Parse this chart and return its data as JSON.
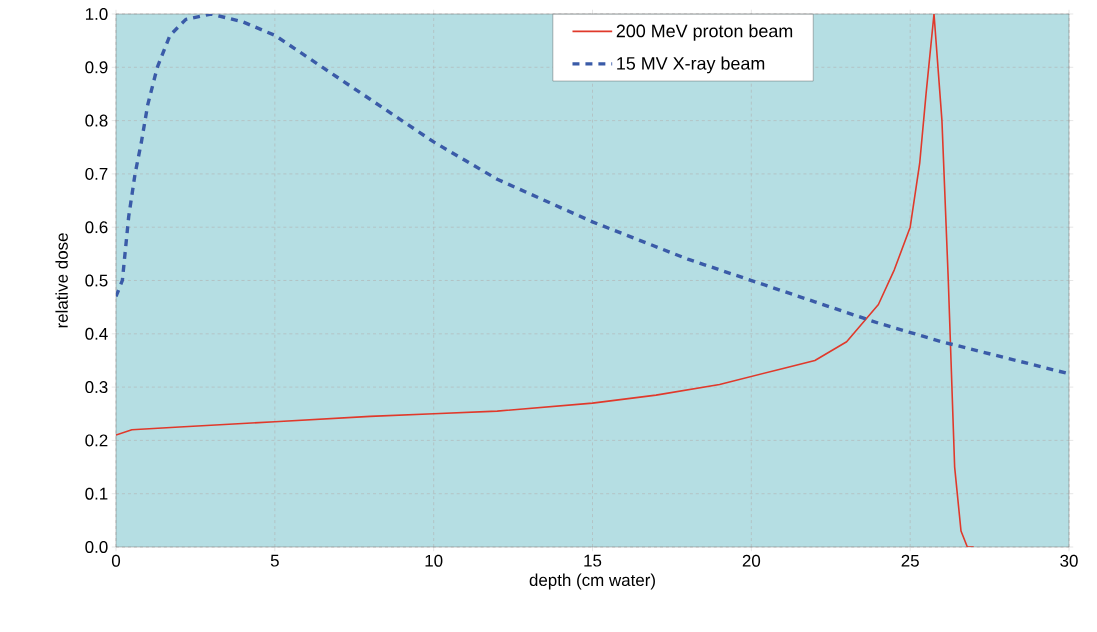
{
  "chart_data": {
    "type": "line",
    "xlabel": "depth (cm water)",
    "ylabel": "relative dose",
    "xlim": [
      0,
      30
    ],
    "ylim": [
      0,
      1
    ],
    "xticks": [
      0,
      5,
      10,
      15,
      20,
      25,
      30
    ],
    "yticks": [
      {
        "value": 0,
        "label": "0.0"
      },
      0.1,
      0.2,
      0.3,
      0.4,
      0.5,
      0.6,
      0.7,
      0.8,
      0.9,
      {
        "value": 1,
        "label": "1.0"
      }
    ],
    "grid": true,
    "legend": "top",
    "marker": "none",
    "series": [
      {
        "name": "200 MeV  proton beam",
        "color": "#e0392b",
        "line_style": "solid",
        "x": [
          0,
          0.5,
          2,
          5,
          8,
          10,
          12,
          15,
          17,
          19,
          20,
          21,
          22,
          23,
          24,
          24.5,
          25,
          25.3,
          25.5,
          25.75,
          26.0,
          26.2,
          26.4,
          26.6,
          26.8,
          27.0
        ],
        "values": [
          0.21,
          0.22,
          0.225,
          0.235,
          0.245,
          0.25,
          0.255,
          0.27,
          0.285,
          0.305,
          0.32,
          0.335,
          0.35,
          0.385,
          0.455,
          0.52,
          0.6,
          0.72,
          0.85,
          1.0,
          0.8,
          0.5,
          0.15,
          0.03,
          0.0,
          0.0
        ]
      },
      {
        "name": "15 MV  X-ray beam",
        "color": "#3a5ba8",
        "line_style": "dashed",
        "x": [
          0,
          0.2,
          0.4,
          0.6,
          0.8,
          1.0,
          1.3,
          1.7,
          2.2,
          3,
          4,
          5,
          6,
          8,
          10,
          12,
          15,
          18,
          20,
          22,
          24,
          26,
          28,
          30
        ],
        "values": [
          0.47,
          0.5,
          0.62,
          0.7,
          0.76,
          0.83,
          0.9,
          0.96,
          0.99,
          1.0,
          0.985,
          0.96,
          0.92,
          0.84,
          0.76,
          0.69,
          0.61,
          0.54,
          0.5,
          0.46,
          0.42,
          0.385,
          0.355,
          0.325
        ]
      }
    ]
  }
}
